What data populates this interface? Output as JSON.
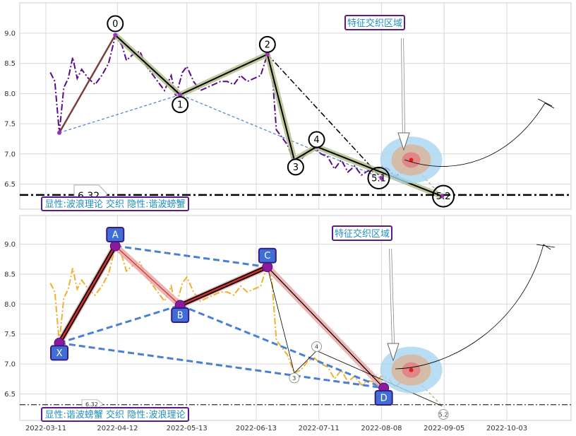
{
  "chart_data": [
    {
      "type": "line",
      "panel": "top",
      "ylim": [
        6.25,
        9.5
      ],
      "yticks": [
        "6.5",
        "7.0",
        "7.5",
        "8.0",
        "8.5",
        "9.0"
      ],
      "ytick_values": [
        6.5,
        7.0,
        7.5,
        8.0,
        8.5,
        9.0
      ],
      "grid": true,
      "price_series": {
        "style": "dash-dot",
        "color": "#5a0a8c",
        "points": [
          [
            "2022-03-13",
            8.35
          ],
          [
            "2022-03-15",
            8.2
          ],
          [
            "2022-03-17",
            7.35
          ],
          [
            "2022-03-19",
            8.1
          ],
          [
            "2022-03-21",
            8.25
          ],
          [
            "2022-03-23",
            8.6
          ],
          [
            "2022-03-25",
            8.25
          ],
          [
            "2022-03-27",
            8.4
          ],
          [
            "2022-03-30",
            8.25
          ],
          [
            "2022-04-02",
            8.15
          ],
          [
            "2022-04-05",
            8.3
          ],
          [
            "2022-04-08",
            8.5
          ],
          [
            "2022-04-11",
            8.95
          ],
          [
            "2022-04-14",
            8.8
          ],
          [
            "2022-04-16",
            8.55
          ],
          [
            "2022-04-19",
            8.65
          ],
          [
            "2022-04-22",
            8.7
          ],
          [
            "2022-04-25",
            8.45
          ],
          [
            "2022-04-28",
            8.3
          ],
          [
            "2022-05-01",
            8.15
          ],
          [
            "2022-05-03",
            8.05
          ],
          [
            "2022-05-06",
            8.3
          ],
          [
            "2022-05-08",
            7.95
          ],
          [
            "2022-05-11",
            8.35
          ],
          [
            "2022-05-13",
            8.45
          ],
          [
            "2022-05-16",
            8.2
          ],
          [
            "2022-05-19",
            8.05
          ],
          [
            "2022-05-22",
            8.1
          ],
          [
            "2022-05-25",
            8.15
          ],
          [
            "2022-05-28",
            8.2
          ],
          [
            "2022-05-31",
            8.2
          ],
          [
            "2022-06-03",
            8.15
          ],
          [
            "2022-06-06",
            8.3
          ],
          [
            "2022-06-09",
            8.2
          ],
          [
            "2022-06-12",
            8.25
          ],
          [
            "2022-06-15",
            8.3
          ],
          [
            "2022-06-18",
            8.65
          ],
          [
            "2022-06-20",
            8.4
          ],
          [
            "2022-06-22",
            7.4
          ],
          [
            "2022-06-24",
            7.3
          ],
          [
            "2022-06-27",
            7.15
          ],
          [
            "2022-06-30",
            6.85
          ],
          [
            "2022-07-03",
            6.9
          ],
          [
            "2022-07-06",
            7.05
          ],
          [
            "2022-07-09",
            7.1
          ],
          [
            "2022-07-12",
            7.0
          ],
          [
            "2022-07-15",
            6.95
          ],
          [
            "2022-07-18",
            6.75
          ],
          [
            "2022-07-21",
            6.9
          ],
          [
            "2022-07-24",
            6.7
          ],
          [
            "2022-07-27",
            6.8
          ],
          [
            "2022-07-30",
            6.65
          ],
          [
            "2022-08-02",
            6.72
          ],
          [
            "2022-08-05",
            6.7
          ],
          [
            "2022-08-08",
            6.8
          ],
          [
            "2022-08-11",
            6.75
          ],
          [
            "2022-08-14",
            6.62
          ],
          [
            "2022-08-17",
            6.7
          ],
          [
            "2022-08-20",
            6.88
          ]
        ]
      },
      "wave_points": [
        {
          "label": "0",
          "date": "2022-04-11",
          "value": 8.97
        },
        {
          "label": "1",
          "date": "2022-05-10",
          "value": 7.98
        },
        {
          "label": "2",
          "date": "2022-06-18",
          "value": 8.65
        },
        {
          "label": "3",
          "date": "2022-06-30",
          "value": 6.9
        },
        {
          "label": "4",
          "date": "2022-07-10",
          "value": 7.12
        },
        {
          "label": "5.1",
          "date": "2022-08-08",
          "value": 6.6
        },
        {
          "label": "5.2",
          "date": "2022-09-04",
          "value": 6.3
        }
      ],
      "start_point": {
        "date": "2022-03-17",
        "value": 7.35
      },
      "reference_line": {
        "value": 6.32,
        "label": "6.32"
      },
      "annotations": [
        "特征交织区域",
        "显性:波浪理论 交织 隐性:谐波螃蟹"
      ],
      "target_zone": {
        "date": "2022-08-20",
        "value": 6.9
      }
    },
    {
      "type": "line",
      "panel": "bottom",
      "ylim": [
        6.25,
        9.5
      ],
      "yticks": [
        "6.5",
        "7.0",
        "7.5",
        "8.0",
        "8.5",
        "9.0"
      ],
      "ytick_values": [
        6.5,
        7.0,
        7.5,
        8.0,
        8.5,
        9.0
      ],
      "xticks": [
        "2022-03-11",
        "2022-04-12",
        "2022-05-13",
        "2022-06-13",
        "2022-07-11",
        "2022-08-08",
        "2022-09-05",
        "2022-10-03"
      ],
      "grid": true,
      "price_series": {
        "style": "dash-dot",
        "color": "#f0b030",
        "points": [
          [
            "2022-03-13",
            8.35
          ],
          [
            "2022-03-15",
            8.2
          ],
          [
            "2022-03-17",
            7.35
          ],
          [
            "2022-03-19",
            8.1
          ],
          [
            "2022-03-21",
            8.25
          ],
          [
            "2022-03-23",
            8.6
          ],
          [
            "2022-03-25",
            8.25
          ],
          [
            "2022-03-27",
            8.4
          ],
          [
            "2022-03-30",
            8.25
          ],
          [
            "2022-04-02",
            8.15
          ],
          [
            "2022-04-05",
            8.3
          ],
          [
            "2022-04-08",
            8.5
          ],
          [
            "2022-04-11",
            8.95
          ],
          [
            "2022-04-14",
            8.8
          ],
          [
            "2022-04-16",
            8.55
          ],
          [
            "2022-04-19",
            8.65
          ],
          [
            "2022-04-22",
            8.7
          ],
          [
            "2022-04-25",
            8.45
          ],
          [
            "2022-04-28",
            8.3
          ],
          [
            "2022-05-01",
            8.15
          ],
          [
            "2022-05-03",
            8.05
          ],
          [
            "2022-05-06",
            8.3
          ],
          [
            "2022-05-08",
            7.95
          ],
          [
            "2022-05-11",
            8.35
          ],
          [
            "2022-05-13",
            8.45
          ],
          [
            "2022-05-16",
            8.2
          ],
          [
            "2022-05-19",
            8.05
          ],
          [
            "2022-05-22",
            8.1
          ],
          [
            "2022-05-25",
            8.15
          ],
          [
            "2022-05-28",
            8.2
          ],
          [
            "2022-05-31",
            8.2
          ],
          [
            "2022-06-03",
            8.15
          ],
          [
            "2022-06-06",
            8.3
          ],
          [
            "2022-06-09",
            8.2
          ],
          [
            "2022-06-12",
            8.25
          ],
          [
            "2022-06-15",
            8.3
          ],
          [
            "2022-06-18",
            8.65
          ],
          [
            "2022-06-20",
            8.4
          ],
          [
            "2022-06-22",
            7.4
          ],
          [
            "2022-06-24",
            7.3
          ],
          [
            "2022-06-27",
            7.15
          ],
          [
            "2022-06-30",
            6.85
          ],
          [
            "2022-07-03",
            6.9
          ],
          [
            "2022-07-06",
            7.05
          ],
          [
            "2022-07-09",
            7.1
          ],
          [
            "2022-07-12",
            7.0
          ],
          [
            "2022-07-15",
            6.95
          ],
          [
            "2022-07-18",
            6.75
          ],
          [
            "2022-07-21",
            6.9
          ],
          [
            "2022-07-24",
            6.7
          ],
          [
            "2022-07-27",
            6.8
          ],
          [
            "2022-07-30",
            6.65
          ],
          [
            "2022-08-02",
            6.72
          ],
          [
            "2022-08-05",
            6.7
          ],
          [
            "2022-08-08",
            6.8
          ],
          [
            "2022-08-11",
            6.75
          ],
          [
            "2022-08-14",
            6.62
          ],
          [
            "2022-08-17",
            6.7
          ],
          [
            "2022-08-20",
            6.88
          ]
        ]
      },
      "pattern_points": [
        {
          "label": "X",
          "date": "2022-03-17",
          "value": 7.35
        },
        {
          "label": "A",
          "date": "2022-04-11",
          "value": 8.97
        },
        {
          "label": "B",
          "date": "2022-05-10",
          "value": 7.98
        },
        {
          "label": "C",
          "date": "2022-06-18",
          "value": 8.62
        },
        {
          "label": "D",
          "date": "2022-08-09",
          "value": 6.6
        }
      ],
      "wave_points": [
        {
          "label": "3",
          "date": "2022-06-30",
          "value": 6.85
        },
        {
          "label": "4",
          "date": "2022-07-10",
          "value": 7.22
        },
        {
          "label": "5.2",
          "date": "2022-09-04",
          "value": 6.3
        }
      ],
      "reference_line": {
        "value": 6.32,
        "label": "6.32"
      },
      "annotations": [
        "特征交织区域",
        "显性:谐波螃蟹 交织 隐性:波浪理论"
      ],
      "target_zone": {
        "date": "2022-08-20",
        "value": 6.9
      }
    }
  ]
}
